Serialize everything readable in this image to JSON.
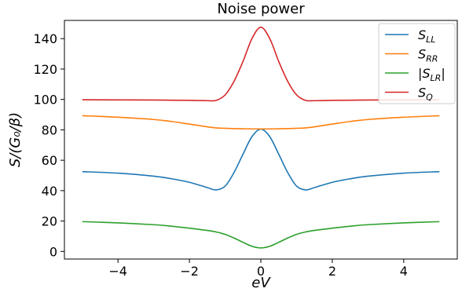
{
  "chart_data": {
    "type": "line",
    "title": "Noise power",
    "xlabel": "eV",
    "ylabel": "S/(G₀/β)",
    "xlim": [
      -5.5,
      5.5
    ],
    "ylim": [
      -5,
      152
    ],
    "xticks": [
      -4,
      -2,
      0,
      2,
      4
    ],
    "xtick_labels": [
      "−4",
      "−2",
      "0",
      "2",
      "4"
    ],
    "yticks": [
      0,
      20,
      40,
      60,
      80,
      100,
      120,
      140
    ],
    "ytick_labels": [
      "0",
      "20",
      "40",
      "60",
      "80",
      "100",
      "120",
      "140"
    ],
    "grid": false,
    "legend_position": "top-right",
    "x": [
      -5,
      -4,
      -3,
      -2.5,
      -2,
      -1.5,
      -1.25,
      -1,
      -0.75,
      -0.5,
      -0.25,
      0,
      0.25,
      0.5,
      0.75,
      1,
      1.25,
      1.5,
      2,
      2.5,
      3,
      4,
      5
    ],
    "series": [
      {
        "name": "S_LL",
        "color": "#1f77b4",
        "values": [
          52.5,
          51.5,
          49.5,
          47.8,
          45.5,
          42,
          40.5,
          43,
          52,
          64,
          75.5,
          80.5,
          75.5,
          64,
          52,
          43,
          40.5,
          42,
          45.5,
          47.8,
          49.5,
          51.5,
          52.5
        ]
      },
      {
        "name": "S_RR",
        "color": "#ff7f0e",
        "values": [
          89.3,
          88.3,
          86.8,
          85.5,
          83.8,
          82,
          81.3,
          81,
          80.8,
          80.7,
          80.6,
          80.6,
          80.6,
          80.7,
          80.8,
          81,
          81.3,
          82,
          83.8,
          85.5,
          86.8,
          88.3,
          89.3
        ]
      },
      {
        "name": "|S_LR|",
        "color": "#2ca02c",
        "values": [
          19.6,
          18.8,
          17.6,
          16.6,
          15.3,
          13.8,
          12.8,
          11.2,
          8.8,
          6,
          3.4,
          2.3,
          3.4,
          6,
          8.8,
          11.2,
          12.8,
          13.8,
          15.3,
          16.6,
          17.6,
          18.8,
          19.6
        ]
      },
      {
        "name": "S_Q",
        "color": "#d62728",
        "values": [
          99.8,
          99.7,
          99.6,
          99.5,
          99.4,
          99.2,
          99.4,
          103,
          112,
          125,
          140,
          147.5,
          140,
          125,
          112,
          103,
          99.4,
          99.2,
          99.4,
          99.5,
          99.6,
          99.7,
          99.8
        ]
      }
    ],
    "legend_entries": [
      {
        "base": "S",
        "sub": "LL",
        "prefix": "",
        "suffix": ""
      },
      {
        "base": "S",
        "sub": "RR",
        "prefix": "",
        "suffix": ""
      },
      {
        "base": "S",
        "sub": "LR",
        "prefix": "|",
        "suffix": "|"
      },
      {
        "base": "S",
        "sub": "Q",
        "prefix": "",
        "suffix": ""
      }
    ]
  }
}
